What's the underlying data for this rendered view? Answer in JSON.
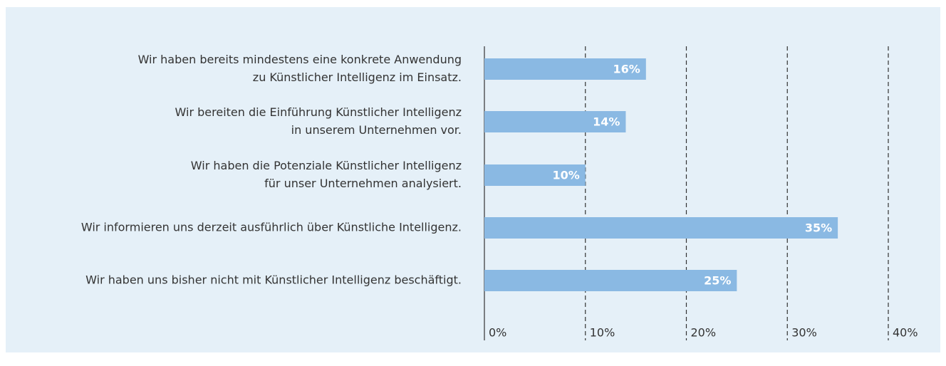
{
  "chart_data": {
    "type": "hbar",
    "categories": [
      [
        "Wir haben bereits mindestens eine konkrete Anwendung",
        "zu Künstlicher Intelligenz im Einsatz."
      ],
      [
        "Wir bereiten die Einführung Künstlicher Intelligenz",
        "in unserem Unternehmen vor."
      ],
      [
        "Wir haben die Potenziale Künstlicher Intelligenz",
        "für unser Unternehmen analysiert."
      ],
      [
        "Wir informieren uns derzeit ausführlich über Künstliche Intelligenz."
      ],
      [
        "Wir haben uns bisher nicht mit Künstlicher Intelligenz beschäftigt."
      ]
    ],
    "values": [
      16,
      14,
      10,
      35,
      25
    ],
    "value_labels": [
      "16%",
      "14%",
      "10%",
      "35%",
      "25%"
    ],
    "color": "#8ab9e3",
    "xlim": [
      0,
      40
    ],
    "xticks": [
      {
        "value": 0,
        "label": "0%"
      },
      {
        "value": 10,
        "label": "10%"
      },
      {
        "value": 20,
        "label": "20%"
      },
      {
        "value": 30,
        "label": "30%"
      },
      {
        "value": 40,
        "label": "40%"
      }
    ],
    "grid": true
  }
}
